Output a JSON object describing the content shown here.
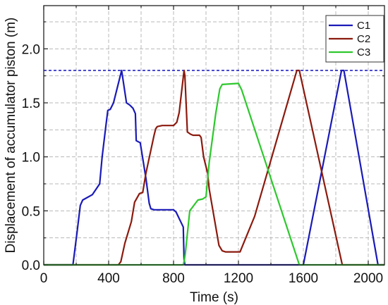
{
  "chart_data": {
    "type": "line",
    "xlabel": "Time (s)",
    "ylabel": "Displacement of accumulator piston (m)",
    "xlim": [
      0,
      2100
    ],
    "ylim": [
      0,
      2.4
    ],
    "xticks": [
      0,
      400,
      800,
      1200,
      1600,
      2000
    ],
    "xtick_labels": [
      "0",
      "400",
      "800",
      "1200",
      "1600",
      "2000"
    ],
    "yticks": [
      0.0,
      0.5,
      1.0,
      1.5,
      2.0
    ],
    "ytick_labels": [
      "0.0",
      "0.5",
      "1.0",
      "1.5",
      "2.0"
    ],
    "grid": true,
    "legend_position": "top-right",
    "reference_line": {
      "y": 1.8,
      "style": "dashed",
      "color": "#1010c0"
    },
    "series": [
      {
        "name": "C1",
        "color": "#1a1ab8",
        "x": [
          0,
          180,
          205,
          225,
          240,
          300,
          345,
          360,
          380,
          395,
          410,
          430,
          480,
          510,
          530,
          550,
          565,
          570,
          595,
          630,
          650,
          660,
          680,
          800,
          815,
          860,
          865,
          870,
          1600,
          1835,
          1850,
          2060,
          2100
        ],
        "y": [
          0,
          0,
          0.3,
          0.55,
          0.6,
          0.65,
          0.75,
          1.0,
          1.25,
          1.43,
          1.44,
          1.5,
          1.8,
          1.5,
          1.48,
          1.45,
          1.4,
          1.15,
          1.13,
          0.8,
          0.57,
          0.52,
          0.51,
          0.51,
          0.49,
          0.35,
          0.05,
          0,
          0,
          1.8,
          1.8,
          0,
          0
        ]
      },
      {
        "name": "C2",
        "color": "#8b1a0e",
        "x": [
          0,
          460,
          475,
          500,
          540,
          560,
          590,
          610,
          630,
          680,
          690,
          700,
          730,
          750,
          800,
          820,
          835,
          865,
          870,
          885,
          905,
          920,
          960,
          970,
          985,
          1010,
          1020,
          1080,
          1100,
          1120,
          1210,
          1300,
          1560,
          1575,
          1840,
          1850,
          2100
        ],
        "y": [
          0,
          0,
          0.03,
          0.2,
          0.4,
          0.58,
          0.66,
          0.67,
          0.85,
          1.2,
          1.26,
          1.28,
          1.29,
          1.29,
          1.29,
          1.32,
          1.41,
          1.8,
          1.75,
          1.23,
          1.21,
          1.2,
          1.2,
          1.18,
          1.0,
          0.85,
          0.7,
          0.18,
          0.13,
          0.12,
          0.12,
          0.45,
          1.8,
          1.8,
          0,
          0,
          0
        ]
      },
      {
        "name": "C3",
        "color": "#2ec82e",
        "x": [
          0,
          860,
          865,
          872,
          900,
          950,
          980,
          1000,
          1020,
          1060,
          1085,
          1100,
          1200,
          1220,
          1575,
          1580,
          2100
        ],
        "y": [
          0,
          0,
          0.03,
          0.1,
          0.5,
          0.6,
          0.61,
          0.63,
          0.95,
          1.4,
          1.63,
          1.67,
          1.68,
          1.62,
          0.0,
          0,
          0
        ]
      }
    ]
  }
}
